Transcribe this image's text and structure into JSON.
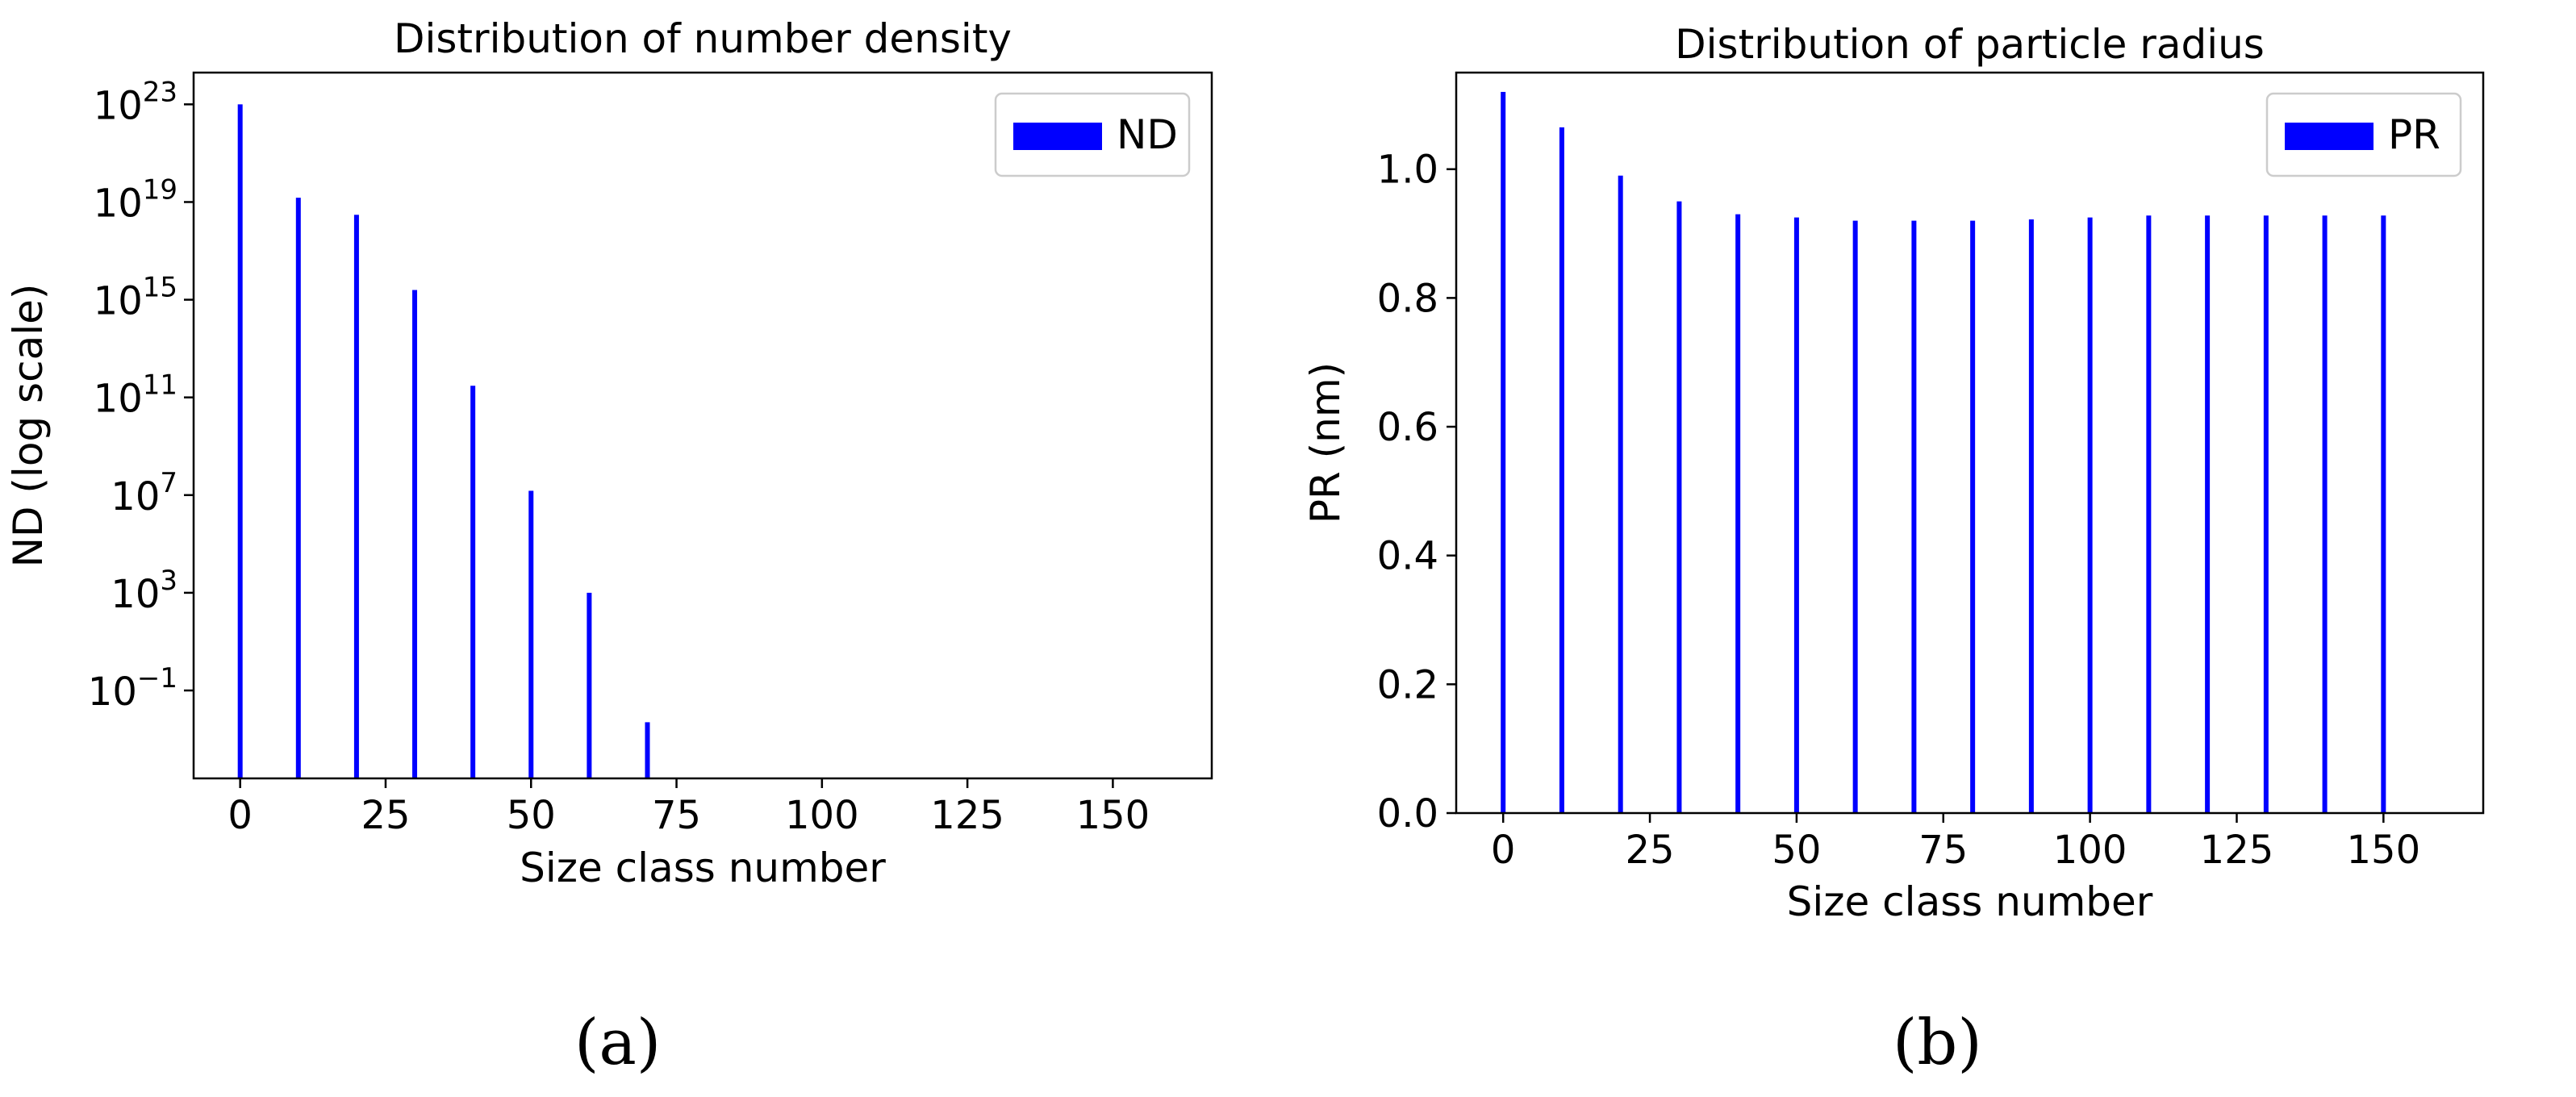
{
  "chart_data": [
    {
      "id": "a",
      "type": "bar",
      "title": "Distribution of number density",
      "xlabel": "Size class number",
      "ylabel": "ND (log scale)",
      "yscale": "log",
      "xlim": [
        -8,
        167
      ],
      "ylim_log10": [
        -4.6,
        24.3
      ],
      "xticks": [
        0,
        25,
        50,
        75,
        100,
        125,
        150
      ],
      "xtick_labels": [
        "0",
        "25",
        "50",
        "75",
        "100",
        "125",
        "150"
      ],
      "ytick_exponents": [
        -1,
        3,
        7,
        11,
        15,
        19,
        23
      ],
      "ytick_labels": [
        {
          "base": "10",
          "exp": "−1"
        },
        {
          "base": "10",
          "exp": "3"
        },
        {
          "base": "10",
          "exp": "7"
        },
        {
          "base": "10",
          "exp": "11"
        },
        {
          "base": "10",
          "exp": "15"
        },
        {
          "base": "10",
          "exp": "19"
        },
        {
          "base": "10",
          "exp": "23"
        }
      ],
      "grid": false,
      "legend": {
        "position": "top-right",
        "entries": [
          "ND"
        ]
      },
      "series": [
        {
          "name": "ND",
          "color": "#0000ff",
          "x": [
            0,
            10,
            20,
            30,
            40,
            50,
            60,
            70
          ],
          "values": [
            1e+23,
            1.5e+19,
            3e+18,
            2500000000000000.0,
            300000000000.0,
            15000000.0,
            1000.0,
            0.005
          ]
        }
      ]
    },
    {
      "id": "b",
      "type": "bar",
      "title": "Distribution of particle radius",
      "xlabel": "Size class number",
      "ylabel": "PR (nm)",
      "yscale": "linear",
      "xlim": [
        -8,
        167
      ],
      "ylim": [
        0,
        1.15
      ],
      "xticks": [
        0,
        25,
        50,
        75,
        100,
        125,
        150
      ],
      "xtick_labels": [
        "0",
        "25",
        "50",
        "75",
        "100",
        "125",
        "150"
      ],
      "yticks": [
        0.0,
        0.2,
        0.4,
        0.6,
        0.8,
        1.0
      ],
      "ytick_labels": [
        "0.0",
        "0.2",
        "0.4",
        "0.6",
        "0.8",
        "1.0"
      ],
      "grid": false,
      "legend": {
        "position": "top-right",
        "entries": [
          "PR"
        ]
      },
      "series": [
        {
          "name": "PR",
          "color": "#0000ff",
          "x": [
            0,
            10,
            20,
            30,
            40,
            50,
            60,
            70,
            80,
            90,
            100,
            110,
            120,
            130,
            140,
            150
          ],
          "values": [
            1.12,
            1.065,
            0.99,
            0.95,
            0.93,
            0.925,
            0.92,
            0.92,
            0.92,
            0.922,
            0.925,
            0.928,
            0.928,
            0.928,
            0.928,
            0.928
          ]
        }
      ]
    }
  ],
  "captions": {
    "a": "(a)",
    "b": "(b)"
  }
}
